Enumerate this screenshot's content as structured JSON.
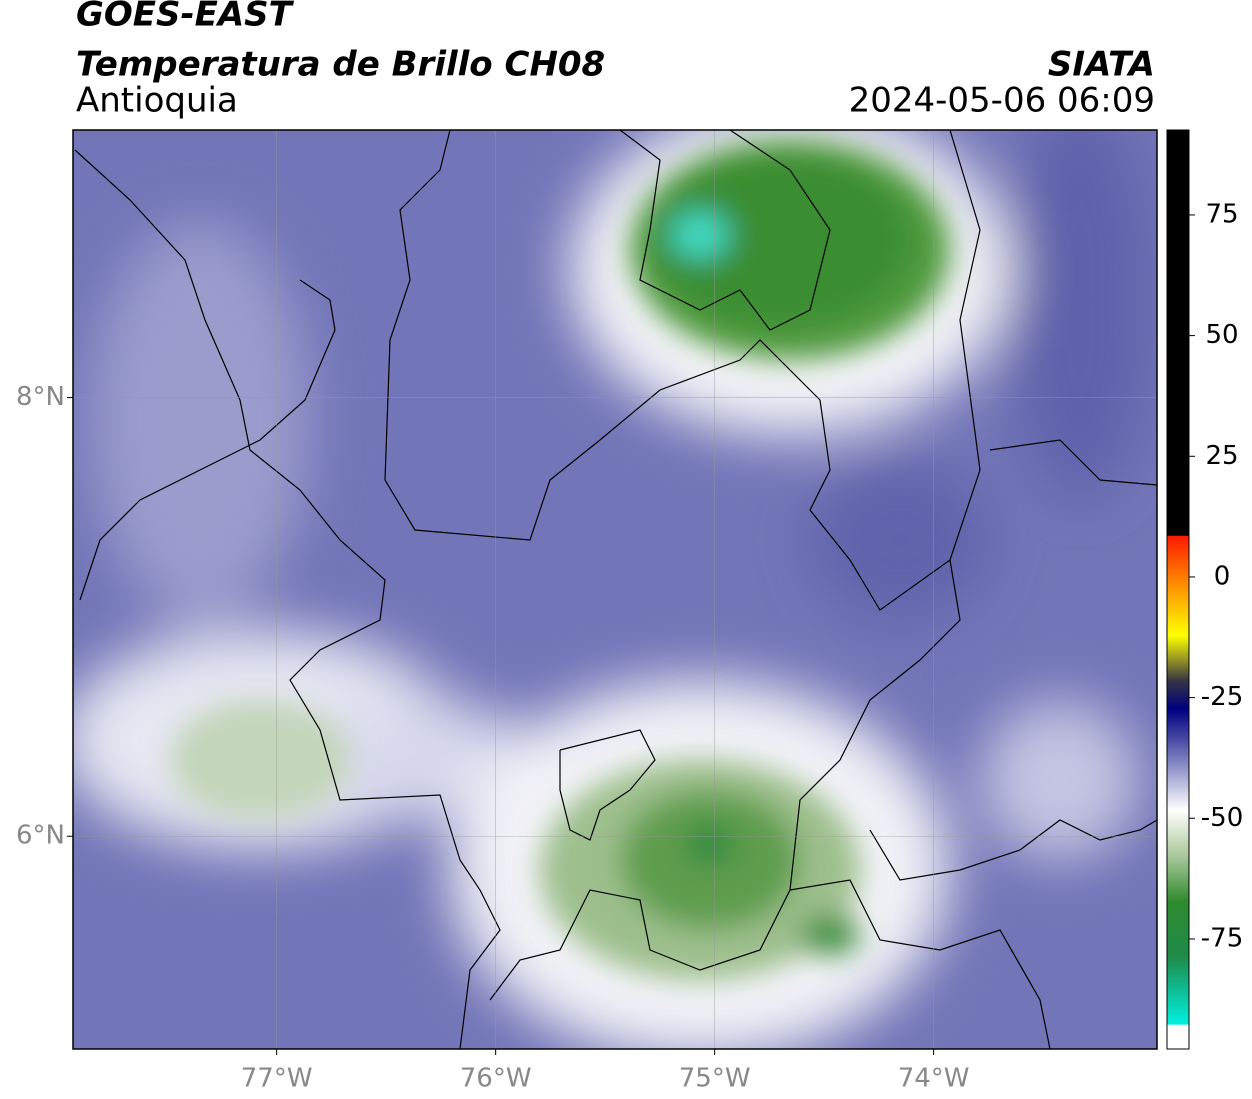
{
  "chart_data": {
    "type": "map",
    "title": "GOES-EAST",
    "subtitle": "Temperatura de Brillo CH08",
    "region": "Antioquia",
    "source": "SIATA",
    "timestamp": "2024-05-06 06:09",
    "xlim": [
      -77.93,
      -72.98
    ],
    "ylim": [
      5.03,
      9.22
    ],
    "xticks": [
      {
        "value": -77,
        "label": "77°W"
      },
      {
        "value": -76,
        "label": "76°W"
      },
      {
        "value": -75,
        "label": "75°W"
      },
      {
        "value": -74,
        "label": "74°W"
      }
    ],
    "yticks": [
      {
        "value": 6,
        "label": "6°N"
      },
      {
        "value": 8,
        "label": "8°N"
      }
    ],
    "grid": true,
    "colorbar": {
      "lim": [
        -97.8,
        92.6
      ],
      "ticks": [
        -75,
        -50,
        -25,
        0,
        25,
        50,
        75
      ]
    }
  }
}
